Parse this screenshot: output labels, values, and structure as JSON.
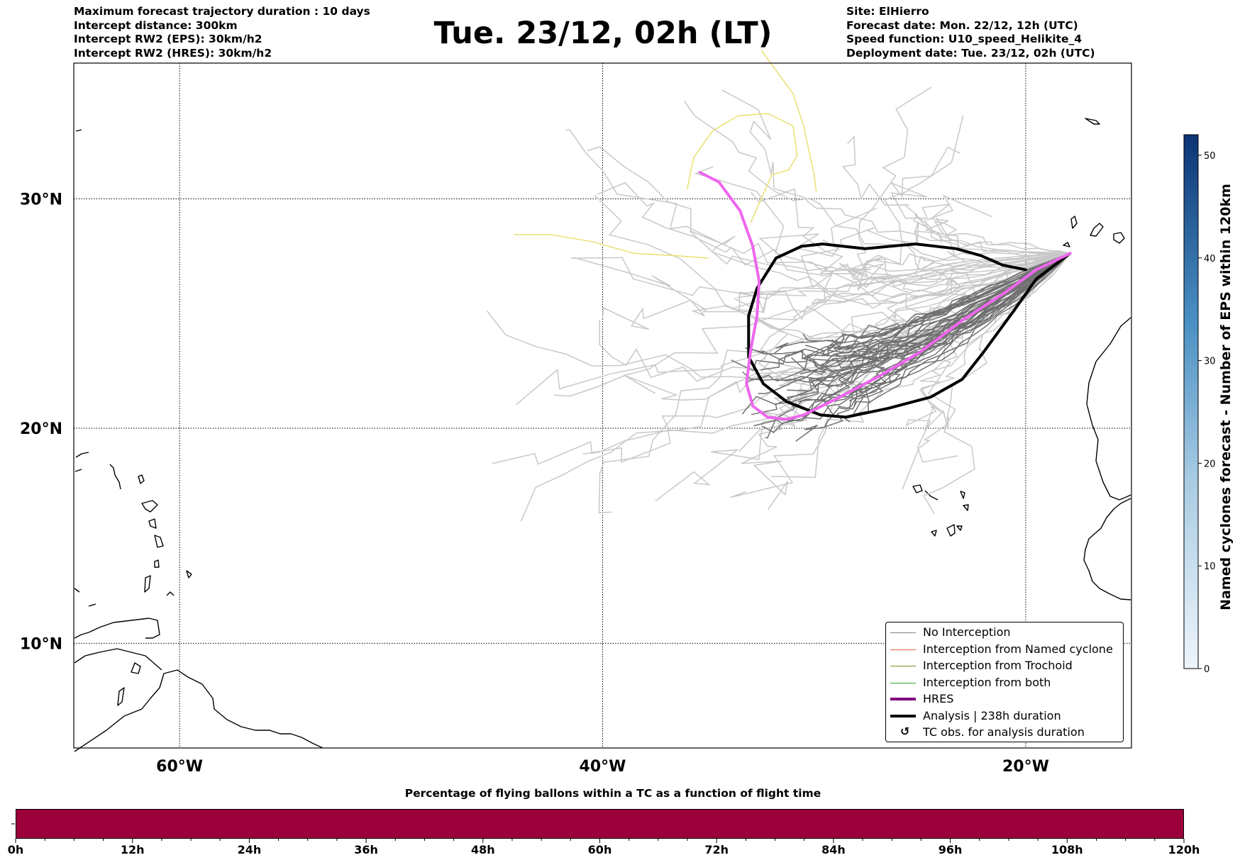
{
  "header_left": [
    "Maximum forecast trajectory duration : 10 days",
    "Intercept distance: 300km",
    "Intercept RW2 (EPS):  30km/h2",
    "Intercept RW2 (HRES): 30km/h2"
  ],
  "title": "Tue. 23/12, 02h (LT)",
  "header_right": [
    "Site: ElHierro",
    "Forecast date: Mon. 22/12, 12h (UTC)",
    "Speed function: U10_speed_Helikite_4",
    "Deployment date: Tue. 23/12, 02h (UTC)"
  ],
  "map": {
    "lon_range": [
      -65,
      -15
    ],
    "lat_range": [
      5,
      35.5
    ],
    "lon_ticks": [
      {
        "value": -60,
        "label": "60°W"
      },
      {
        "value": -40,
        "label": "40°W"
      },
      {
        "value": -20,
        "label": "20°W"
      }
    ],
    "lat_ticks": [
      {
        "value": 30,
        "label": "30°N"
      },
      {
        "value": 20,
        "label": "20°N"
      },
      {
        "value": 10,
        "label": "10°N"
      }
    ],
    "launch_site": {
      "name": "ElHierro",
      "lon": -17.9,
      "lat": 27.7
    },
    "hres_color": "#ee66ee",
    "analysis_color": "#000000",
    "eps_light_color": "#c8c8c8",
    "eps_dark_color": "#707070",
    "named_cyclone_track_color": "#e8e070",
    "hres_track": [
      [
        -17.9,
        27.7
      ],
      [
        -19.5,
        27
      ],
      [
        -21,
        26
      ],
      [
        -23,
        24.8
      ],
      [
        -25,
        23.4
      ],
      [
        -27,
        22.3
      ],
      [
        -29,
        21.3
      ],
      [
        -30.5,
        20.6
      ],
      [
        -31.3,
        20.4
      ],
      [
        -32.2,
        20.5
      ],
      [
        -32.9,
        21
      ],
      [
        -33.2,
        22
      ],
      [
        -33.0,
        23.5
      ],
      [
        -32.7,
        25
      ],
      [
        -32.6,
        26.5
      ],
      [
        -32.9,
        28
      ],
      [
        -33.5,
        29.5
      ],
      [
        -34.5,
        30.7
      ],
      [
        -35.4,
        31.1
      ]
    ],
    "analysis_track": [
      [
        -17.9,
        27.7
      ],
      [
        -19.5,
        26.6
      ],
      [
        -20.5,
        25.3
      ],
      [
        -22,
        23.4
      ],
      [
        -23,
        22.2
      ],
      [
        -24.5,
        21.4
      ],
      [
        -26.5,
        20.9
      ],
      [
        -28.5,
        20.5
      ],
      [
        -29.7,
        20.6
      ],
      [
        -31.3,
        21.2
      ],
      [
        -32.4,
        22
      ],
      [
        -33.1,
        23.2
      ],
      [
        -33.1,
        25
      ],
      [
        -32.7,
        26.2
      ],
      [
        -31.8,
        27.5
      ],
      [
        -30.6,
        28.0
      ],
      [
        -29.6,
        28.1
      ],
      [
        -27.6,
        27.9
      ],
      [
        -25.2,
        28.1
      ],
      [
        -23.3,
        27.9
      ],
      [
        -22.1,
        27.6
      ],
      [
        -21.1,
        27.2
      ],
      [
        -20.0,
        27.0
      ]
    ]
  },
  "legend": [
    {
      "label": "No Interception",
      "kind": "thin",
      "color": "#808080"
    },
    {
      "label": "Interception from Named cyclone",
      "kind": "thin",
      "color": "#e8623a"
    },
    {
      "label": "Interception from Trochoid",
      "kind": "thin",
      "color": "#8a8a20"
    },
    {
      "label": "Interception from both",
      "kind": "thin",
      "color": "#2ca02c"
    },
    {
      "label": "HRES",
      "kind": "thick",
      "color": "#800080"
    },
    {
      "label": "Analysis | 238h duration",
      "kind": "thick",
      "color": "#000000"
    },
    {
      "label": "TC obs. for analysis duration",
      "kind": "marker",
      "color": "#000000"
    }
  ],
  "colorbar": {
    "title": "Named cyclones forecast - Number of EPS within 120km",
    "min": 0,
    "max": 52,
    "ticks": [
      0,
      10,
      20,
      30,
      40,
      50
    ],
    "color_low": "#eef5fc",
    "color_high": "#0b3474"
  },
  "timebar": {
    "title": "Percentage of flying ballons within a TC as a function of flight time",
    "bar_color": "#9b003a",
    "labels": [
      "0h",
      "12h",
      "24h",
      "36h",
      "48h",
      "60h",
      "72h",
      "84h",
      "96h",
      "108h",
      "120h"
    ]
  }
}
